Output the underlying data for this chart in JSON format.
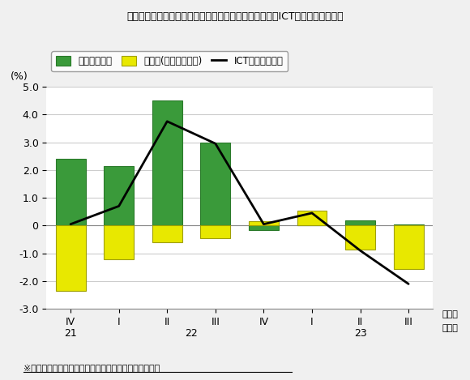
{
  "title": "機械受注（民需、除く船舶・電力・携帯電話）に占めるICT関連機種の寄与度",
  "ylabel": "(%)",
  "footnote": "※ここでいう設備投資は機械受注統計で代用している。",
  "cat_labels": [
    "IV",
    "I",
    "II",
    "III",
    "IV",
    "I",
    "II",
    "III"
  ],
  "year_labels": [
    [
      0,
      "21"
    ],
    [
      2.5,
      "22"
    ],
    [
      6,
      "23"
    ]
  ],
  "green_bars": [
    2.4,
    2.15,
    4.5,
    3.0,
    -0.15,
    0.05,
    0.2,
    0.05
  ],
  "yellow_bars": [
    -2.35,
    -1.2,
    -0.6,
    -0.45,
    0.15,
    0.55,
    -0.85,
    -1.55
  ],
  "line_values": [
    0.05,
    0.7,
    3.75,
    2.95,
    0.05,
    0.45,
    -0.9,
    -2.1
  ],
  "ylim": [
    -3.0,
    5.0
  ],
  "yticks": [
    -3.0,
    -2.0,
    -1.0,
    0.0,
    1.0,
    2.0,
    3.0,
    4.0,
    5.0
  ],
  "green_color": "#3a9a3a",
  "yellow_color": "#e8e800",
  "line_color": "#000000",
  "legend_labels": [
    "電子計算機等",
    "通信機(除く携帯電話)",
    "ICT関連設備投資"
  ],
  "plot_bg_color": "#ffffff",
  "fig_bg_color": "#f0f0f0"
}
